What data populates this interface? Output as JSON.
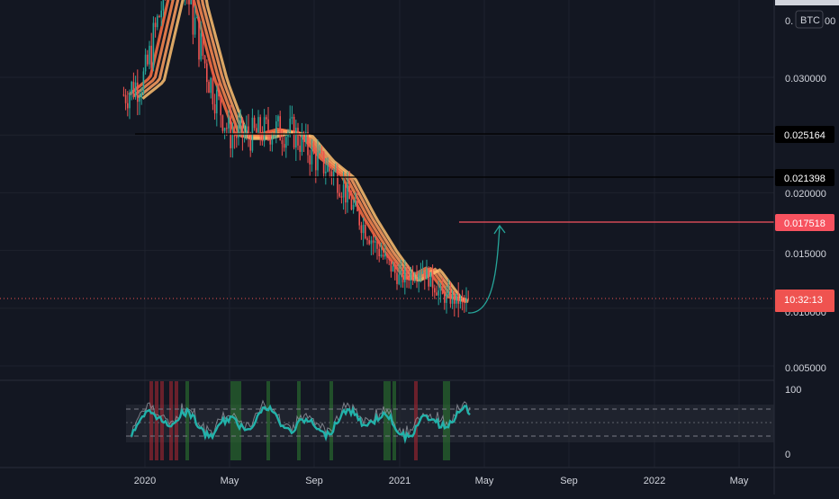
{
  "chart_data": {
    "type": "candlestick",
    "currency_badge": "BTC",
    "price_scale": {
      "ticks": [
        0.03,
        0.025,
        0.02,
        0.015,
        0.01,
        0.005
      ],
      "tick_labels": [
        "0.030000",
        "",
        "0.020000",
        "0.015000",
        "0.010000",
        "0.005000"
      ]
    },
    "time_axis": {
      "labels": [
        "2020",
        "May",
        "Sep",
        "2021",
        "May",
        "Sep",
        "2022",
        "May"
      ]
    },
    "price_series_approx": [
      {
        "x": "2019-12",
        "y": 0.0285
      },
      {
        "x": "2020-01",
        "y": 0.03
      },
      {
        "x": "2020-02",
        "y": 0.038
      },
      {
        "x": "2020-02-20",
        "y": 0.042
      },
      {
        "x": "2020-03",
        "y": 0.037
      },
      {
        "x": "2020-04",
        "y": 0.03
      },
      {
        "x": "2020-05",
        "y": 0.025
      },
      {
        "x": "2020-06",
        "y": 0.025
      },
      {
        "x": "2020-07",
        "y": 0.0255
      },
      {
        "x": "2020-08",
        "y": 0.0252
      },
      {
        "x": "2020-09",
        "y": 0.023
      },
      {
        "x": "2020-10",
        "y": 0.0215
      },
      {
        "x": "2020-11",
        "y": 0.018
      },
      {
        "x": "2020-12",
        "y": 0.015
      },
      {
        "x": "2021-01",
        "y": 0.0125
      },
      {
        "x": "2021-02",
        "y": 0.0135
      },
      {
        "x": "2021-03",
        "y": 0.011
      },
      {
        "x": "2021-04",
        "y": 0.0105
      }
    ],
    "horizontal_levels": [
      {
        "value": 0.025164,
        "label": "0.025164",
        "color": "#000000"
      },
      {
        "value": 0.021398,
        "label": "0.021398",
        "color": "#000000"
      },
      {
        "value": 0.017518,
        "label": "0.017518",
        "color": "#f7525f"
      }
    ],
    "countdown_label": "10:32:13",
    "current_price_approx": 0.0109,
    "projection_arrow": {
      "from": {
        "x": "2021-04",
        "y": 0.0104
      },
      "to": {
        "x": "2021-05",
        "y": 0.0172
      }
    },
    "oscillator": {
      "axis_labels": [
        "100",
        "0"
      ],
      "upper_band": 80,
      "lower_band": 20,
      "mid": 50
    },
    "colors": {
      "background": "#131722",
      "grid": "#1e222d",
      "bull": "#26a69a",
      "bear": "#ef5350",
      "ribbon": [
        "#ff7043",
        "#ff8a50",
        "#ffa060",
        "#ffc070"
      ],
      "oscillator_line": "#22b2aa",
      "level_red": "#f7525f"
    }
  }
}
